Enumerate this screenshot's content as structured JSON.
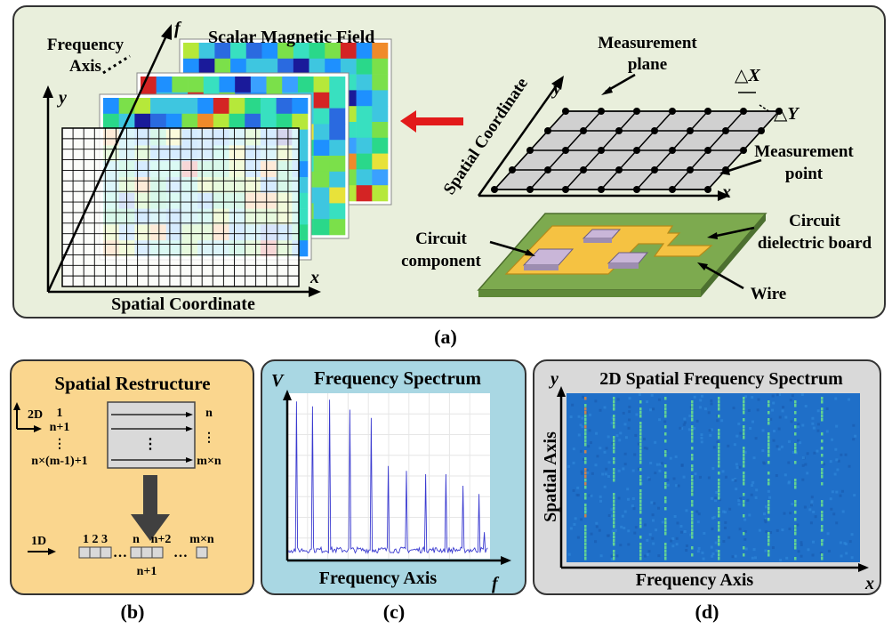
{
  "panel_a": {
    "caption": "(a)",
    "frequency_axis": [
      "Frequency",
      "Axis"
    ],
    "f_label": "f",
    "y_label": "y",
    "x_label": "x",
    "scalar_field_title": "Scalar Magnetic Field",
    "spatial_coordinate_bottom": "Spatial Coordinate",
    "measurement_plane": [
      "Measurement",
      "plane"
    ],
    "spatial_coordinate_diag": "Spatial Coordinate",
    "delta_x": "△X",
    "delta_y": "△Y",
    "measurement_point": [
      "Measurement",
      "point"
    ],
    "circuit_component": [
      "Circuit",
      "component"
    ],
    "circuit_board": [
      "Circuit",
      "dielectric board"
    ],
    "wire": "Wire",
    "colors": {
      "arrow": "#e21a1a",
      "board": "#7daa4f",
      "wire": "#f5c242",
      "chip": "#c9b6d8"
    }
  },
  "panel_b": {
    "caption": "(b)",
    "title": "Spatial Restructure",
    "label_2d": "2D",
    "label_1d": "1D",
    "row_start": [
      "1",
      "n+1",
      "⋮",
      "n×(m-1)+1"
    ],
    "row_end": [
      "n",
      "⋮",
      "m×n"
    ],
    "middle_dots": "⋮",
    "seq_top": [
      "1 2 3",
      "n",
      "n+2",
      "m×n"
    ],
    "seq_dots": [
      "…",
      "…"
    ],
    "seq_bottom": "n+1"
  },
  "panel_c": {
    "caption": "(c)",
    "title": "Frequency Spectrum",
    "ylabel": "V",
    "xlabel": "Frequency Axis",
    "f_label": "f",
    "chart_data": {
      "type": "line",
      "title": "Frequency Spectrum",
      "xlabel": "Frequency Axis",
      "ylabel": "V",
      "peaks_relative": [
        0.94,
        0.91,
        0.95,
        0.89,
        0.84,
        0.55,
        0.52,
        0.5,
        0.5,
        0.43,
        0.38,
        0.15
      ],
      "noise_floor_relative": 0.04,
      "grid": true
    }
  },
  "panel_d": {
    "caption": "(d)",
    "title": "2D Spatial Frequency Spectrum",
    "ylabel": "Spatial Axis",
    "xlabel": "Frequency Axis",
    "y_label": "y",
    "x_label": "x",
    "colors": {
      "background": "#1f6fc8",
      "line": "#6fe38a"
    }
  }
}
